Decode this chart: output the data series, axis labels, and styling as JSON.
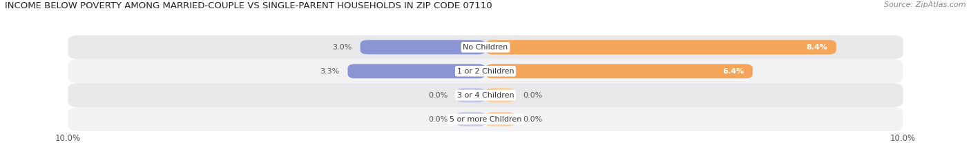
{
  "title": "INCOME BELOW POVERTY AMONG MARRIED-COUPLE VS SINGLE-PARENT HOUSEHOLDS IN ZIP CODE 07110",
  "source": "Source: ZipAtlas.com",
  "categories": [
    "No Children",
    "1 or 2 Children",
    "3 or 4 Children",
    "5 or more Children"
  ],
  "married_values": [
    3.0,
    3.3,
    0.0,
    0.0
  ],
  "single_values": [
    8.4,
    6.4,
    0.0,
    0.0
  ],
  "married_color": "#8b95d3",
  "single_color": "#f5a55a",
  "married_color_light": "#c4c9e8",
  "single_color_light": "#f9cfa0",
  "row_bg_odd": "#e8e8ea",
  "row_bg_even": "#f2f2f4",
  "xlim": 10.0,
  "title_fontsize": 9.5,
  "label_fontsize": 8,
  "value_fontsize": 8,
  "tick_fontsize": 8.5,
  "source_fontsize": 8,
  "background_color": "#ffffff",
  "min_bar_width": 0.7
}
